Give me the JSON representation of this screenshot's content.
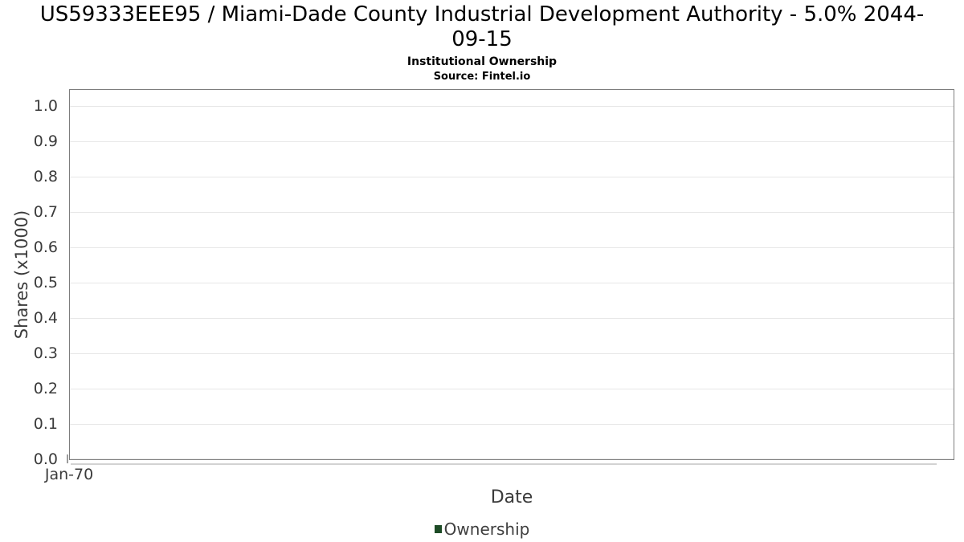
{
  "header": {
    "title_lines": [
      "US59333EEE95 / Miami-Dade County Industrial Development Authority - 5.0% 2044-",
      "09-15"
    ],
    "subtitle": "Institutional Ownership",
    "source": "Source: Fintel.io"
  },
  "chart_data": {
    "type": "line",
    "title": "US59333EEE95 / Miami-Dade County Industrial Development Authority - 5.0% 2044-09-15",
    "subtitle": "Institutional Ownership",
    "source": "Source: Fintel.io",
    "xlabel": "Date",
    "ylabel": "Shares (x1000)",
    "x_tick_labels": [
      "Jan-70"
    ],
    "y_ticks": [
      0.0,
      0.1,
      0.2,
      0.3,
      0.4,
      0.5,
      0.6,
      0.7,
      0.8,
      0.9,
      1.0
    ],
    "ylim": [
      0.0,
      1.05
    ],
    "grid": "horizontal",
    "legend_position": "bottom-center",
    "series": [
      {
        "name": "Ownership",
        "color": "#1d4b26",
        "x": [],
        "values": []
      }
    ]
  },
  "legend": {
    "items": [
      {
        "label": "Ownership",
        "color": "#1d4b26"
      }
    ]
  },
  "colors": {
    "plot_border": "#7d7d7d",
    "gridline": "#e7e7e7",
    "axis_text": "#3b3b3b",
    "title_text": "#000000",
    "legend_green": "#1d4b26"
  }
}
